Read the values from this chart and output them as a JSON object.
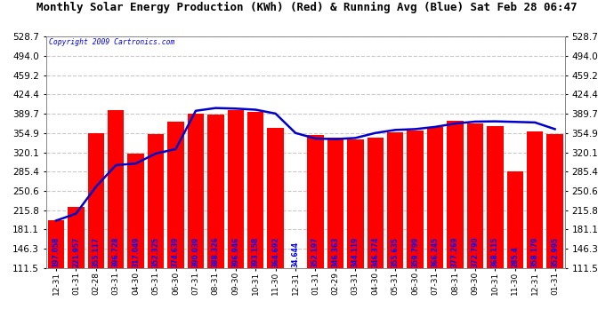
{
  "title": "Monthly Solar Energy Production (KWh) (Red) & Running Avg (Blue) Sat Feb 28 06:47",
  "copyright": "Copyright 2009 Cartronics.com",
  "bar_color": "#FF0000",
  "line_color": "#0000CC",
  "background_color": "#FFFFFF",
  "plot_bg_color": "#FFFFFF",
  "grid_color": "#C8C8C8",
  "categories": [
    "12-31",
    "01-31",
    "02-28",
    "03-31",
    "04-30",
    "05-31",
    "06-30",
    "07-31",
    "08-31",
    "09-30",
    "10-31",
    "11-30",
    "12-31",
    "01-31",
    "02-29",
    "03-31",
    "04-30",
    "05-31",
    "06-30",
    "07-31",
    "08-31",
    "09-30",
    "10-31",
    "11-30",
    "12-31",
    "01-31"
  ],
  "values": [
    197.058,
    221.957,
    355.117,
    396.728,
    317.049,
    352.325,
    374.639,
    390.039,
    388.326,
    396.946,
    393.158,
    364.692,
    34.644,
    352.197,
    346.363,
    344.119,
    346.374,
    355.635,
    359.799,
    366.245,
    377.269,
    372.79,
    368.115,
    285.4,
    358.179,
    352.995
  ],
  "running_avg": [
    197.058,
    209.508,
    258.044,
    297.0,
    300.0,
    318.0,
    326.0,
    395.0,
    400.0,
    399.0,
    397.0,
    390.0,
    355.0,
    345.0,
    344.0,
    346.0,
    355.0,
    360.5,
    362.0,
    366.0,
    372.0,
    375.5,
    376.0,
    375.0,
    374.0,
    362.0
  ],
  "ylim_min": 111.5,
  "ylim_max": 528.7,
  "yticks": [
    111.5,
    146.3,
    181.1,
    215.8,
    250.6,
    285.4,
    320.1,
    354.9,
    389.7,
    424.4,
    459.2,
    494.0,
    528.7
  ],
  "value_labels": [
    "197.058",
    "221.957",
    "355.117",
    "396.728",
    "317.049",
    "352.325",
    "374.639",
    "390.039",
    "388.326",
    "396.946",
    "393.158",
    "364.692",
    "34.644",
    "352.197",
    "346.363",
    "344.119",
    "346.374",
    "355.635",
    "359.799",
    "366.245",
    "377.269",
    "372.790",
    "368.115",
    "285.4",
    "358.179",
    "352.995"
  ],
  "title_fontsize": 9,
  "tick_fontsize": 6.5,
  "label_fontsize": 5.5,
  "ytick_fontsize": 7.5
}
